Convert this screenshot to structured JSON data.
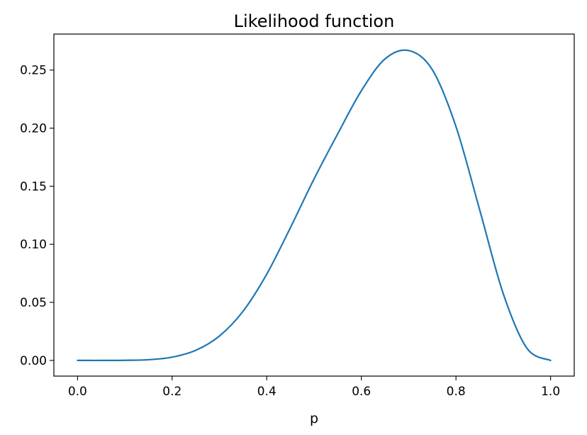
{
  "chart_data": {
    "type": "line",
    "title": "Likelihood function",
    "xlabel": "p",
    "ylabel": "",
    "xlim": [
      -0.05,
      1.05
    ],
    "ylim": [
      -0.0135,
      0.281
    ],
    "xticks": [
      0.0,
      0.2,
      0.4,
      0.6,
      0.8,
      1.0
    ],
    "xtick_labels": [
      "0.0",
      "0.2",
      "0.4",
      "0.6",
      "0.8",
      "1.0"
    ],
    "yticks": [
      0.0,
      0.05,
      0.1,
      0.15,
      0.2,
      0.25
    ],
    "ytick_labels": [
      "0.00",
      "0.05",
      "0.10",
      "0.15",
      "0.20",
      "0.25"
    ],
    "grid": false,
    "line_color": "#1f77b4",
    "series": [
      {
        "x": [
          0.0,
          0.05,
          0.1,
          0.15,
          0.2,
          0.25,
          0.3,
          0.35,
          0.4,
          0.45,
          0.5,
          0.55,
          0.6,
          0.65,
          0.7,
          0.75,
          0.8,
          0.85,
          0.9,
          0.95,
          1.0
        ],
        "values": [
          0.0,
          0.0,
          0.0001,
          0.0006,
          0.0028,
          0.0087,
          0.021,
          0.0424,
          0.0743,
          0.1143,
          0.1563,
          0.1951,
          0.2322,
          0.2596,
          0.2668,
          0.2503,
          0.2013,
          0.1298,
          0.0574,
          0.0105,
          0.0
        ]
      }
    ]
  }
}
